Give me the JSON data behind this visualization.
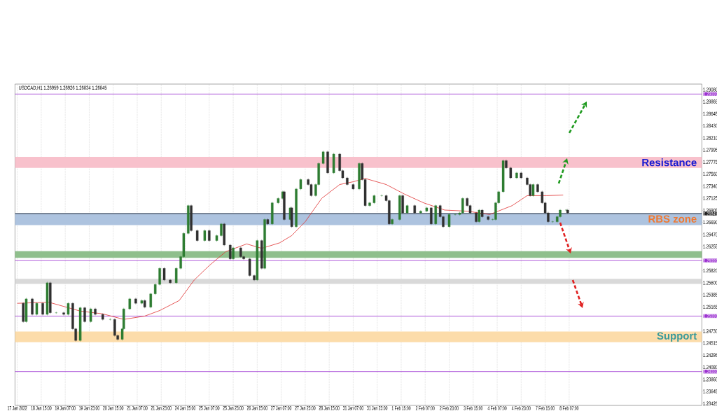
{
  "chart_data": {
    "type": "candlestick",
    "annotations": [
      "USDCAD,H1 1.26959 1.26926 1.26834 1.26845"
    ],
    "categories": [
      "17 Jan 2022",
      null,
      null,
      null,
      null,
      null,
      null,
      null,
      null,
      null,
      null,
      null,
      null,
      null,
      null,
      null,
      "18 Jan 15:00",
      null,
      null,
      null,
      null,
      null,
      null,
      null,
      null,
      null,
      null,
      null,
      null,
      null,
      null,
      null,
      "19 Jan 07:00",
      null,
      null,
      null,
      null,
      null,
      null,
      null,
      null,
      null,
      null,
      null,
      null,
      null,
      null,
      null,
      "19 Jan 23:00",
      null,
      null,
      null,
      null,
      null,
      null,
      null,
      null,
      null,
      null,
      null,
      null,
      null,
      null,
      null,
      "20 Jan 15:00",
      null,
      null,
      null,
      null,
      null,
      null,
      null,
      null,
      null,
      null,
      null,
      null,
      null,
      null,
      null,
      "21 Jan 07:00",
      null,
      null,
      null,
      null,
      null,
      null,
      null,
      null,
      null,
      null,
      null,
      null,
      null,
      null,
      null,
      "21 Jan 23:00",
      null,
      null,
      null,
      null,
      null,
      null,
      null,
      null,
      null,
      null,
      null,
      null,
      null,
      null,
      null,
      "24 Jan 15:00",
      null,
      null,
      null,
      null,
      null,
      null,
      null,
      null,
      null,
      null,
      null,
      null,
      null,
      null,
      null,
      "25 Jan 07:00",
      null,
      null,
      null,
      null,
      null,
      null,
      null,
      null,
      null,
      null,
      null,
      null,
      null,
      null,
      null,
      "25 Jan 23:00",
      null,
      null,
      null,
      null,
      null,
      null,
      null,
      null,
      null,
      null,
      null,
      null,
      null,
      null,
      null,
      "26 Jan 15:00",
      null,
      null,
      null,
      null,
      null,
      null,
      null,
      null,
      null,
      null,
      null,
      null,
      null,
      null,
      null,
      "27 Jan 07:00",
      null,
      null,
      null,
      null,
      null,
      null,
      null,
      null,
      null,
      null,
      null,
      null,
      null,
      null,
      null,
      "27 Jan 23:00",
      null,
      null,
      null,
      null,
      null,
      null,
      null,
      null,
      null,
      null,
      null,
      null,
      null,
      null,
      null,
      "28 Jan 15:00",
      null,
      null,
      null,
      null,
      null,
      null,
      null,
      null,
      null,
      null,
      null,
      null,
      null,
      null,
      null,
      "31 Jan 07:00",
      null,
      null,
      null,
      null,
      null,
      null,
      null,
      null,
      null,
      null,
      null,
      null,
      null,
      null,
      null,
      "31 Jan 23:00",
      null,
      null,
      null,
      null,
      null,
      null,
      null,
      null,
      null,
      null,
      null,
      null,
      null,
      null,
      null,
      "1 Feb 15:00",
      null,
      null,
      null,
      null,
      null,
      null,
      null,
      null,
      null,
      null,
      null,
      null,
      null,
      null,
      null,
      "2 Feb 07:00",
      null,
      null,
      null,
      null,
      null,
      null,
      null,
      null,
      null,
      null,
      null,
      null,
      null,
      null,
      null,
      "2 Feb 23:00",
      null,
      null,
      null,
      null,
      null,
      null,
      null,
      null,
      null,
      null,
      null,
      null,
      null,
      null,
      null,
      "3 Feb 15:00",
      null,
      null,
      null,
      null,
      null,
      null,
      null,
      null,
      null,
      null,
      null,
      null,
      null,
      null,
      null,
      "4 Feb 07:00",
      null,
      null,
      null,
      null,
      null,
      null,
      null,
      null,
      null,
      null,
      null,
      null,
      null,
      null,
      null,
      "4 Feb 23:00",
      null,
      null,
      null,
      null,
      null,
      null,
      null,
      null,
      null,
      null,
      null,
      null,
      null,
      null,
      null,
      "7 Feb 15:00",
      null,
      null,
      null,
      null,
      null,
      null,
      null,
      null,
      null,
      null,
      null,
      null,
      null,
      null,
      null,
      "8 Feb 07:00",
      null,
      null,
      null,
      null,
      null,
      null,
      null,
      null,
      null,
      null,
      null,
      null,
      null,
      null,
      null,
      null,
      null,
      null,
      null,
      null,
      null,
      null,
      null,
      null,
      null,
      null,
      null,
      null,
      null,
      null,
      null,
      null,
      null,
      null,
      null,
      null,
      null,
      null,
      null,
      null,
      null,
      null,
      null,
      null,
      null,
      null,
      null,
      null,
      null,
      null,
      null,
      null,
      null,
      null,
      null,
      null,
      null,
      null,
      null,
      null,
      null,
      null,
      null,
      null,
      null,
      null,
      null,
      null,
      null,
      null,
      null,
      null,
      null,
      null,
      null,
      null,
      null,
      null,
      null,
      null,
      null,
      null,
      null,
      null,
      null,
      null,
      null,
      null
    ],
    "ohlc": [
      null,
      null,
      null,
      null,
      [
        1.2523,
        1.2525,
        1.2488,
        1.249
      ],
      null,
      [
        1.249,
        1.2533,
        1.2488,
        1.2531
      ],
      null,
      null,
      null,
      [
        1.2531,
        1.2533,
        1.2501,
        1.2503
      ],
      null,
      null,
      [
        1.2503,
        1.2525,
        1.2501,
        1.2523
      ],
      null,
      null,
      null,
      [
        1.2523,
        1.2525,
        1.2501,
        1.2503
      ],
      null,
      null,
      [
        1.2503,
        1.2562,
        1.2501,
        1.256
      ],
      null,
      [
        1.256,
        1.2562,
        1.2504,
        1.2506
      ],
      null,
      null,
      null,
      [
        1.2506,
        1.2508,
        1.2504,
        1.2506
      ],
      null,
      null,
      null,
      null,
      [
        1.2506,
        1.2508,
        1.2501,
        1.2503
      ],
      null,
      null,
      [
        1.2503,
        1.2525,
        1.2501,
        1.2523
      ],
      null,
      null,
      [
        1.2523,
        1.2525,
        1.2475,
        1.2477
      ],
      null,
      [
        1.2477,
        1.2479,
        1.2454,
        1.2456
      ],
      null,
      null,
      [
        1.2456,
        1.2517,
        1.2454,
        1.2515
      ],
      null,
      null,
      [
        1.2515,
        1.2517,
        1.2488,
        1.249
      ],
      null,
      null,
      null,
      [
        1.249,
        1.2515,
        1.2488,
        1.2513
      ],
      null,
      null,
      [
        1.2513,
        1.2515,
        1.2501,
        1.2503
      ],
      null,
      null,
      null,
      null,
      [
        1.2503,
        1.2505,
        1.2492,
        1.2494
      ],
      null,
      null,
      null,
      null,
      [
        1.2494,
        1.2496,
        1.2492,
        1.2494
      ],
      null,
      null,
      [
        1.2494,
        1.2496,
        1.2463,
        1.2465
      ],
      null,
      [
        1.2465,
        1.2467,
        1.2456,
        1.2458
      ],
      null,
      null,
      [
        1.2458,
        1.2479,
        1.2456,
        1.2477
      ],
      [
        1.2477,
        1.2515,
        1.2475,
        1.2513
      ],
      null,
      null,
      null,
      [
        1.2513,
        1.2533,
        1.2511,
        1.2531
      ],
      null,
      null,
      null,
      [
        1.2531,
        1.2533,
        1.2521,
        1.2523
      ],
      null,
      null,
      null,
      [
        1.2523,
        1.253,
        1.2521,
        1.2528
      ],
      null,
      [
        1.2528,
        1.253,
        1.2514,
        1.2516
      ],
      null,
      null,
      null,
      [
        1.2516,
        1.2542,
        1.2514,
        1.254
      ],
      null,
      null,
      [
        1.254,
        1.2559,
        1.2538,
        1.2557
      ],
      null,
      null,
      [
        1.2557,
        1.2588,
        1.2555,
        1.2586
      ],
      null,
      null,
      [
        1.2586,
        1.2588,
        1.2563,
        1.2565
      ],
      null,
      null,
      null,
      [
        1.2565,
        1.2567,
        1.2558,
        1.256
      ],
      null,
      null,
      null,
      [
        1.256,
        1.2588,
        1.2558,
        1.2586
      ],
      null,
      null,
      [
        1.2586,
        1.2609,
        1.2584,
        1.2607
      ],
      null,
      [
        1.2607,
        1.2651,
        1.2605,
        1.2649
      ],
      null,
      null,
      [
        1.2649,
        1.2701,
        1.2647,
        1.2699
      ],
      null,
      [
        1.2699,
        1.2701,
        1.2652,
        1.2654
      ],
      null,
      null,
      null,
      [
        1.2654,
        1.2656,
        1.2634,
        1.2636
      ],
      null,
      null,
      null,
      null,
      [
        1.2636,
        1.2656,
        1.2634,
        1.2654
      ],
      null,
      null,
      [
        1.2654,
        1.2656,
        1.2634,
        1.2636
      ],
      null,
      null,
      null,
      null,
      [
        1.2636,
        1.2647,
        1.2634,
        1.2645
      ],
      null,
      null,
      [
        1.2645,
        1.2668,
        1.2643,
        1.2666
      ],
      null,
      [
        1.2666,
        1.2668,
        1.2626,
        1.2628
      ],
      null,
      null,
      null,
      [
        1.2628,
        1.263,
        1.2601,
        1.2603
      ],
      null,
      [
        1.2603,
        1.2625,
        1.2601,
        1.2623
      ],
      null,
      null,
      null,
      null,
      [
        1.2623,
        1.2625,
        1.2605,
        1.2607
      ],
      null,
      [
        1.2607,
        1.2609,
        1.2601,
        1.2603
      ],
      null,
      null,
      null,
      [
        1.2603,
        1.2605,
        1.2571,
        1.2573
      ],
      null,
      null,
      [
        1.2573,
        1.2575,
        1.2563,
        1.2565
      ],
      null,
      [
        1.2565,
        1.2638,
        1.2563,
        1.2636
      ],
      null,
      null,
      [
        1.2636,
        1.2638,
        1.2584,
        1.2586
      ],
      null,
      [
        1.2586,
        1.2676,
        1.2584,
        1.2674
      ],
      null,
      [
        1.2674,
        1.2676,
        1.2664,
        1.2666
      ],
      null,
      null,
      [
        1.2666,
        1.2706,
        1.2664,
        1.2704
      ],
      null,
      null,
      null,
      [
        1.2704,
        1.2714,
        1.2702,
        1.2712
      ],
      null,
      null,
      [
        1.2712,
        1.2726,
        1.271,
        1.2724
      ],
      [
        1.2724,
        1.2726,
        1.2672,
        1.2674
      ],
      null,
      null,
      null,
      [
        1.2674,
        1.2697,
        1.2672,
        1.2695
      ],
      [
        1.2695,
        1.2697,
        1.2659,
        1.2661
      ],
      null,
      null,
      [
        1.2661,
        1.2731,
        1.2659,
        1.2729
      ],
      null,
      null,
      [
        1.2729,
        1.2748,
        1.2727,
        1.2746
      ],
      null,
      null,
      null,
      null,
      [
        1.2746,
        1.2748,
        1.2735,
        1.2737
      ],
      null,
      [
        1.2737,
        1.2739,
        1.2715,
        1.2717
      ],
      null,
      null,
      [
        1.2717,
        1.2739,
        1.2715,
        1.2737
      ],
      null,
      [
        1.2737,
        1.2777,
        1.2735,
        1.2775
      ],
      null,
      null,
      [
        1.2775,
        1.2798,
        1.2773,
        1.2796
      ],
      null,
      null,
      [
        1.2796,
        1.2798,
        1.2756,
        1.2758
      ],
      null,
      null,
      null,
      [
        1.2758,
        1.2794,
        1.2756,
        1.2792
      ],
      null,
      null,
      null,
      [
        1.2792,
        1.2794,
        1.276,
        1.2762
      ],
      null,
      [
        1.2762,
        1.2764,
        1.2747,
        1.2749
      ],
      null,
      null,
      [
        1.2749,
        1.2751,
        1.2735,
        1.2737
      ],
      null,
      null,
      null,
      [
        1.2737,
        1.2739,
        1.2727,
        1.2729
      ],
      null,
      null,
      null,
      [
        1.2729,
        1.2777,
        1.2727,
        1.2775
      ],
      null,
      [
        1.2775,
        1.2777,
        1.2744,
        1.2746
      ],
      null,
      [
        1.2746,
        1.2748,
        1.2697,
        1.2699
      ],
      null,
      null,
      [
        1.2699,
        1.2706,
        1.2697,
        1.2704
      ],
      null,
      null,
      [
        1.2704,
        1.2719,
        1.2702,
        1.2717
      ],
      null,
      null,
      null,
      null,
      [
        1.2717,
        1.2719,
        1.2715,
        1.2717
      ],
      null,
      null,
      [
        1.2717,
        1.2719,
        1.2706,
        1.2708
      ],
      null,
      [
        1.2708,
        1.271,
        1.2664,
        1.2666
      ],
      null,
      [
        1.2666,
        1.2676,
        1.2664,
        1.2674
      ],
      null,
      null,
      null,
      null,
      [
        1.2674,
        1.2719,
        1.2672,
        1.2717
      ],
      null,
      [
        1.2717,
        1.2719,
        1.2684,
        1.2686
      ],
      null,
      null,
      [
        1.2686,
        1.2701,
        1.2684,
        1.2699
      ],
      null,
      null,
      null,
      null,
      [
        1.2699,
        1.2701,
        1.2684,
        1.2686
      ],
      null,
      null,
      null,
      [
        1.2686,
        1.2691,
        1.2684,
        1.2689
      ],
      null,
      null,
      null,
      [
        1.2689,
        1.2697,
        1.2687,
        1.2695
      ],
      null,
      null,
      [
        1.2695,
        1.2697,
        1.2664,
        1.2666
      ],
      null,
      null,
      [
        1.2666,
        1.2701,
        1.2664,
        1.2699
      ],
      null,
      null,
      [
        1.2699,
        1.2701,
        1.2677,
        1.2679
      ],
      null,
      [
        1.2679,
        1.2681,
        1.2659,
        1.2661
      ],
      null,
      null,
      null,
      [
        1.2661,
        1.2685,
        1.2659,
        1.2683
      ],
      null,
      null,
      null,
      [
        1.2683,
        1.2685,
        1.2681,
        1.2683
      ],
      null,
      null,
      [
        1.2683,
        1.2688,
        1.2681,
        1.2686
      ],
      null,
      [
        1.2686,
        1.2714,
        1.2684,
        1.2712
      ],
      null,
      null,
      [
        1.2712,
        1.2714,
        1.2697,
        1.2699
      ],
      null,
      [
        1.2699,
        1.2701,
        1.2684,
        1.2686
      ],
      null,
      null,
      null,
      [
        1.2686,
        1.2688,
        1.2668,
        1.267
      ],
      null,
      [
        1.267,
        1.2693,
        1.2668,
        1.2691
      ],
      null,
      [
        1.2691,
        1.2693,
        1.2677,
        1.2679
      ],
      null,
      null,
      null,
      [
        1.2679,
        1.2681,
        1.2672,
        1.2674
      ],
      null,
      null,
      [
        1.2674,
        1.2676,
        1.2672,
        1.2674
      ],
      null,
      [
        1.2674,
        1.2706,
        1.2672,
        1.2704
      ],
      null,
      [
        1.2704,
        1.2726,
        1.2702,
        1.2724
      ],
      null,
      null,
      [
        1.2724,
        1.2782,
        1.2722,
        1.278
      ],
      null,
      [
        1.278,
        1.2782,
        1.2765,
        1.2767
      ],
      null,
      null,
      [
        1.2767,
        1.2769,
        1.2747,
        1.2749
      ],
      null,
      null,
      null,
      [
        1.2749,
        1.276,
        1.2747,
        1.2758
      ],
      null,
      null,
      [
        1.2758,
        1.276,
        1.2747,
        1.2749
      ],
      null,
      null,
      null,
      [
        1.2749,
        1.2751,
        1.2735,
        1.2737
      ],
      null,
      [
        1.2737,
        1.2739,
        1.2715,
        1.2717
      ],
      null,
      [
        1.2717,
        1.2739,
        1.2715,
        1.2737
      ],
      null,
      null,
      [
        1.2737,
        1.2739,
        1.2722,
        1.2724
      ],
      null,
      null,
      [
        1.2724,
        1.2726,
        1.2702,
        1.2704
      ],
      null,
      [
        1.2704,
        1.2706,
        1.2684,
        1.2686
      ],
      null,
      [
        1.2686,
        1.2688,
        1.2668,
        1.267
      ],
      null,
      null,
      [
        1.267,
        1.2672,
        1.2668,
        1.267
      ],
      null,
      null,
      [
        1.267,
        1.2681,
        1.2668,
        1.2679
      ],
      null,
      [
        1.2679,
        1.2693,
        1.2677,
        1.2691
      ],
      null,
      null,
      null,
      [
        1.2691,
        1.2693,
        1.2689,
        1.2691
      ],
      [
        1.2691,
        1.2693,
        1.2684,
        1.2686
      ],
      null,
      null,
      null,
      null,
      null,
      null,
      null,
      null,
      null,
      null,
      null,
      null,
      null,
      null,
      null,
      null,
      null,
      null,
      null,
      null,
      null,
      null,
      null,
      null,
      null,
      null,
      null,
      null,
      null,
      null,
      null,
      null,
      null,
      null,
      null,
      null,
      null,
      null,
      null,
      null,
      null,
      null,
      null,
      null,
      null,
      null,
      null,
      null,
      null,
      null,
      null,
      null,
      null,
      null,
      null,
      null,
      null,
      null,
      null,
      null,
      null,
      null,
      null,
      null,
      null,
      null,
      null,
      null,
      null,
      null,
      null,
      null,
      null,
      null,
      null,
      null,
      null,
      null,
      null,
      null,
      null,
      null,
      null,
      null,
      null,
      null,
      null,
      null,
      null
    ],
    "series": [
      {
        "type": "line",
        "color": "#e03030",
        "values": [
          1.2523,
          null,
          null,
          null,
          null,
          null,
          null,
          null,
          null,
          null,
          null,
          null,
          null,
          null,
          null,
          null,
          null,
          null,
          null,
          null,
          null,
          1.2525,
          null,
          null,
          null,
          null,
          null,
          null,
          null,
          null,
          null,
          null,
          null,
          null,
          null,
          null,
          null,
          null,
          null,
          null,
          null,
          null,
          1.2509,
          null,
          null,
          null,
          null,
          null,
          null,
          null,
          null,
          null,
          null,
          null,
          null,
          null,
          null,
          1.2504,
          null,
          null,
          null,
          null,
          null,
          null,
          null,
          null,
          null,
          null,
          null,
          null,
          null,
          1.2494,
          null,
          null,
          null,
          null,
          null,
          null,
          null,
          null,
          null,
          null,
          null,
          null,
          null,
          1.25,
          null,
          null,
          null,
          null,
          null,
          null,
          null,
          null,
          null,
          1.251,
          null,
          null,
          null,
          null,
          null,
          null,
          null,
          null,
          null,
          null,
          null,
          null,
          1.2528,
          null,
          null,
          null,
          null,
          null,
          null,
          null,
          null,
          null,
          1.2565,
          null,
          null,
          null,
          null,
          null,
          null,
          null,
          null,
          null,
          1.2591,
          null,
          null,
          null,
          null,
          null,
          null,
          null,
          null,
          null,
          null,
          1.2616,
          null,
          null,
          null,
          null,
          null,
          null,
          null,
          null,
          null,
          null,
          null,
          null,
          null,
          1.263,
          null,
          null,
          null,
          null,
          null,
          null,
          null,
          null,
          null,
          1.2622,
          null,
          null,
          null,
          null,
          null,
          null,
          null,
          null,
          null,
          null,
          null,
          1.2632,
          null,
          null,
          null,
          null,
          null,
          null,
          null,
          1.2645,
          null,
          null,
          null,
          null,
          null,
          null,
          null,
          null,
          1.267,
          null,
          null,
          null,
          null,
          null,
          null,
          null,
          null,
          null,
          null,
          1.2712,
          null,
          null,
          null,
          null,
          null,
          null,
          null,
          null,
          null,
          null,
          null,
          1.2737,
          null,
          null,
          null,
          null,
          null,
          null,
          null,
          null,
          1.2742,
          null,
          null,
          null,
          null,
          null,
          null,
          null,
          1.2748,
          null,
          null,
          null,
          null,
          null,
          null,
          null,
          null,
          null,
          null,
          null,
          null,
          null,
          1.2737,
          null,
          null,
          null,
          null,
          null,
          null,
          null,
          null,
          null,
          null,
          null,
          1.272,
          null,
          null,
          null,
          null,
          null,
          null,
          null,
          null,
          null,
          null,
          null,
          null,
          1.2704,
          null,
          null,
          null,
          null,
          null,
          null,
          null,
          null,
          null,
          null,
          null,
          null,
          null,
          1.2691,
          null,
          null,
          null,
          null,
          null,
          null,
          null,
          null,
          null,
          null,
          null,
          null,
          null,
          null,
          1.2689,
          null,
          null,
          null,
          null,
          null,
          null,
          null,
          null,
          null,
          null,
          null,
          null,
          null,
          null,
          1.2683,
          null,
          null,
          null,
          null,
          null,
          null,
          null,
          null,
          null,
          null,
          null,
          null,
          null,
          null,
          1.2699,
          null,
          null,
          null,
          null,
          null,
          null,
          null,
          null,
          null,
          1.2717,
          null,
          null,
          null,
          null,
          null,
          null,
          null,
          null,
          null,
          null,
          null,
          null,
          1.2717,
          null,
          null,
          null,
          null,
          null,
          null,
          null,
          null,
          null,
          null,
          1.2718,
          null,
          null,
          null,
          null,
          null,
          null,
          null,
          null,
          null,
          null,
          null,
          null,
          null,
          null,
          null,
          null,
          null,
          null,
          null,
          null,
          null,
          null,
          null,
          null,
          null,
          null,
          null,
          null,
          null,
          null,
          null,
          null,
          null,
          null,
          null,
          null,
          null,
          null,
          null,
          null,
          null,
          null,
          null,
          null,
          null,
          null,
          null,
          null,
          null,
          null,
          null,
          null,
          null,
          null,
          null,
          null,
          null,
          null,
          null,
          null,
          null,
          null,
          null,
          null,
          null,
          null,
          null,
          null,
          null,
          null,
          null,
          null,
          null,
          null,
          null,
          null,
          null,
          null,
          null,
          null,
          null,
          null,
          null,
          null,
          null,
          null,
          null,
          null,
          null,
          null,
          null,
          null
        ]
      }
    ],
    "ylim": [
      1.2339,
      1.2918
    ],
    "yticks": [
      {
        "value": 1.2908,
        "label": "1.29080"
      },
      {
        "value": 1.28865,
        "label": "1.28865"
      },
      {
        "value": 1.28645,
        "label": "1.28645"
      },
      {
        "value": 1.2843,
        "label": "1.28430"
      },
      {
        "value": 1.2821,
        "label": "1.28210"
      },
      {
        "value": 1.27995,
        "label": "1.27995"
      },
      {
        "value": 1.27775,
        "label": "1.27775"
      },
      {
        "value": 1.2756,
        "label": "1.27560"
      },
      {
        "value": 1.2734,
        "label": "1.27340"
      },
      {
        "value": 1.27125,
        "label": "1.27125"
      },
      {
        "value": 1.26905,
        "label": "1.26905"
      },
      {
        "value": 1.2669,
        "label": "1.26690"
      },
      {
        "value": 1.2647,
        "label": "1.26470"
      },
      {
        "value": 1.26255,
        "label": "1.26255"
      },
      {
        "value": 1.2582,
        "label": "1.25820"
      },
      {
        "value": 1.256,
        "label": "1.25600"
      },
      {
        "value": 1.25385,
        "label": "1.25385"
      },
      {
        "value": 1.25165,
        "label": "1.25165"
      },
      {
        "value": 1.2473,
        "label": "1.24730"
      },
      {
        "value": 1.24515,
        "label": "1.24515"
      },
      {
        "value": 1.24295,
        "label": "1.24295"
      },
      {
        "value": 1.2408,
        "label": "1.24080"
      },
      {
        "value": 1.2386,
        "label": "1.23860"
      },
      {
        "value": 1.23645,
        "label": "1.23645"
      },
      {
        "value": 1.23425,
        "label": "1.23425"
      }
    ],
    "grid": "x",
    "bands": [
      {
        "axis": "y",
        "from": 1.2767,
        "to": 1.2787,
        "color": "#f8c1cc",
        "label": "Resistance"
      },
      {
        "axis": "y",
        "from": 1.2664,
        "to": 1.2686,
        "color": "#adc3df",
        "label": "RBS zone"
      },
      {
        "axis": "y",
        "from": 1.2605,
        "to": 1.2617,
        "color": "#8fbf8c"
      },
      {
        "axis": "y",
        "from": 1.2558,
        "to": 1.2567,
        "color": "#d9d9d9"
      },
      {
        "axis": "y",
        "from": 1.2453,
        "to": 1.2472,
        "color": "#fcdcaa",
        "label": "Support"
      }
    ],
    "ref_lines": [
      {
        "axis": "y",
        "value": 1.29,
        "label": "1.29000",
        "color": "#9b30d0"
      },
      {
        "axis": "y",
        "value": 1.26845,
        "label": "1.26845",
        "color": "#202020"
      },
      {
        "axis": "y",
        "value": 1.26,
        "label": "1.26000",
        "color": "#9b30d0"
      },
      {
        "axis": "y",
        "value": 1.25,
        "label": "1.25000",
        "color": "#9b30d0"
      },
      {
        "axis": "y",
        "value": 1.24,
        "label": "1.24000",
        "color": "#9b30d0"
      }
    ]
  }
}
